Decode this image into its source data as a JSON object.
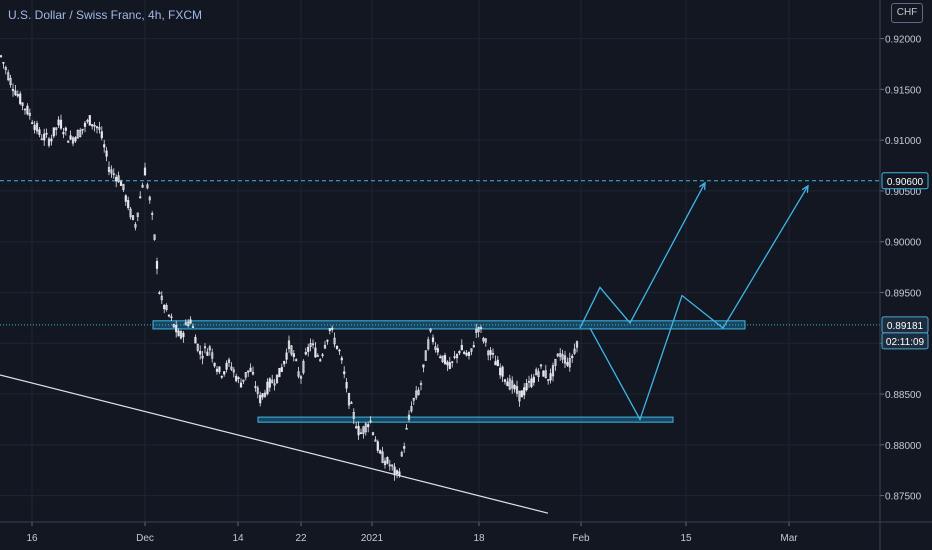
{
  "header": {
    "title": "U.S. Dollar / Swiss Franc, 4h, FXCM"
  },
  "currency_button": "CHF",
  "colors": {
    "background": "#131722",
    "grid": "#1f2433",
    "candle": "#e6e8ee",
    "drawing": "#3fb6e8",
    "zone_fill": "#1c6f93",
    "trendline": "#dfe2e8",
    "badge_bg": "#1e2d3d",
    "axis_text": "#c5c9d3"
  },
  "chart_data": {
    "type": "candlestick",
    "title": "U.S. Dollar / Swiss Franc, 4h, FXCM",
    "ylim": [
      0.8724,
      0.9238
    ],
    "y_ticks": [
      "0.92000",
      "0.91500",
      "0.91000",
      "0.90500",
      "0.90000",
      "0.89500",
      "0.89000",
      "0.88500",
      "0.88000",
      "0.87500"
    ],
    "x_ticks": [
      "16",
      "Dec",
      "14",
      "22",
      "2021",
      "18",
      "Feb",
      "15",
      "Mar"
    ],
    "price_path": [
      [
        0,
        0.9185
      ],
      [
        10,
        0.916
      ],
      [
        20,
        0.914
      ],
      [
        30,
        0.9125
      ],
      [
        40,
        0.9105
      ],
      [
        50,
        0.91
      ],
      [
        60,
        0.9118
      ],
      [
        70,
        0.91
      ],
      [
        80,
        0.9108
      ],
      [
        90,
        0.912
      ],
      [
        100,
        0.911
      ],
      [
        110,
        0.907
      ],
      [
        120,
        0.9062
      ],
      [
        130,
        0.903
      ],
      [
        135,
        0.9015
      ],
      [
        145,
        0.907
      ],
      [
        150,
        0.904
      ],
      [
        155,
        0.9
      ],
      [
        160,
        0.8945
      ],
      [
        170,
        0.8925
      ],
      [
        180,
        0.8905
      ],
      [
        190,
        0.8925
      ],
      [
        200,
        0.889
      ],
      [
        210,
        0.8895
      ],
      [
        220,
        0.887
      ],
      [
        230,
        0.888
      ],
      [
        240,
        0.886
      ],
      [
        250,
        0.8875
      ],
      [
        260,
        0.8845
      ],
      [
        270,
        0.886
      ],
      [
        280,
        0.887
      ],
      [
        290,
        0.89
      ],
      [
        300,
        0.8865
      ],
      [
        310,
        0.89
      ],
      [
        320,
        0.8885
      ],
      [
        330,
        0.8915
      ],
      [
        340,
        0.889
      ],
      [
        350,
        0.884
      ],
      [
        360,
        0.881
      ],
      [
        370,
        0.8825
      ],
      [
        380,
        0.879
      ],
      [
        390,
        0.878
      ],
      [
        398,
        0.8768
      ],
      [
        405,
        0.8805
      ],
      [
        412,
        0.884
      ],
      [
        420,
        0.8855
      ],
      [
        430,
        0.891
      ],
      [
        440,
        0.889
      ],
      [
        450,
        0.8875
      ],
      [
        460,
        0.8895
      ],
      [
        470,
        0.8885
      ],
      [
        478,
        0.8918
      ],
      [
        490,
        0.889
      ],
      [
        500,
        0.8875
      ],
      [
        510,
        0.886
      ],
      [
        520,
        0.8848
      ],
      [
        530,
        0.886
      ],
      [
        540,
        0.8875
      ],
      [
        550,
        0.8865
      ],
      [
        560,
        0.889
      ],
      [
        570,
        0.888
      ],
      [
        578,
        0.8905
      ]
    ],
    "horizontal_line": {
      "price": 0.906,
      "label": "0.90600"
    },
    "current_price": {
      "price": 0.89181,
      "label": "0.89181",
      "countdown": "02:11:09"
    },
    "zones": [
      {
        "name": "resistance-zone",
        "price_top": 0.89221,
        "price_bottom": 0.89141,
        "x_from": 153,
        "x_to": 745
      },
      {
        "name": "support-zone",
        "price_top": 0.88273,
        "price_bottom": 0.88223,
        "x_from": 258,
        "x_to": 673
      }
    ],
    "trendline": {
      "from": [
        0,
        0.88688
      ],
      "to": [
        548,
        0.87327
      ]
    },
    "projections": [
      [
        [
          580,
          0.8915
        ],
        [
          600,
          0.8955
        ],
        [
          630,
          0.892
        ],
        [
          705,
          0.9058
        ]
      ],
      [
        [
          590,
          0.8915
        ],
        [
          640,
          0.8825
        ],
        [
          682,
          0.8947
        ],
        [
          723,
          0.8915
        ],
        [
          808,
          0.9055
        ]
      ]
    ]
  }
}
